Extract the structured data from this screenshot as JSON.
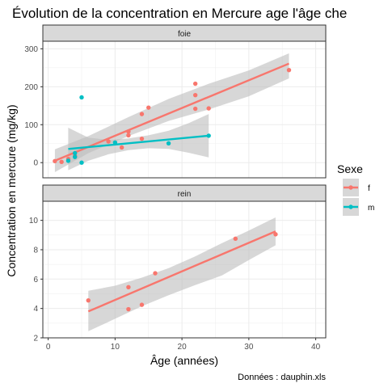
{
  "chart_data": {
    "type": "scatter",
    "title": "Évolution de la concentration en Mercure age l'âge che",
    "xlabel": "Âge (années)",
    "ylabel": "Concentration en mercure (mg/kg)",
    "caption": "Données : dauphin.xls",
    "legend": {
      "title": "Sexe",
      "position": "right",
      "entries": [
        "f",
        "m"
      ]
    },
    "colors": {
      "f": "#F8766D",
      "m": "#00BFC4",
      "ribbon": "#BDBDBD",
      "strip": "#D9D9D9"
    },
    "xlim": [
      -0.8,
      41.5
    ],
    "x_ticks": [
      0,
      10,
      20,
      30,
      40
    ],
    "panels": [
      {
        "label": "foie",
        "ylim": [
          -40,
          320
        ],
        "y_ticks": [
          0,
          100,
          200,
          300
        ],
        "series": [
          {
            "name": "f",
            "points": [
              [
                1,
                4
              ],
              [
                2,
                2
              ],
              [
                3,
                10
              ],
              [
                4,
                18
              ],
              [
                9,
                56
              ],
              [
                11,
                40
              ],
              [
                12,
                72
              ],
              [
                12,
                82
              ],
              [
                14,
                63
              ],
              [
                14,
                128
              ],
              [
                15,
                145
              ],
              [
                22,
                142
              ],
              [
                22,
                178
              ],
              [
                22,
                208
              ],
              [
                24,
                143
              ],
              [
                36,
                244
              ]
            ],
            "fit": {
              "x": [
                1,
                36
              ],
              "y": [
                5,
                261
              ]
            },
            "band": {
              "x": [
                1,
                6,
                12,
                18,
                24,
                30,
                36
              ],
              "upper": [
                35,
                70,
                120,
                168,
                208,
                243,
                288
              ],
              "lower": [
                -25,
                25,
                70,
                110,
                140,
                175,
                222
              ]
            }
          },
          {
            "name": "m",
            "points": [
              [
                3,
                5
              ],
              [
                4,
                15
              ],
              [
                4,
                25
              ],
              [
                5,
                0
              ],
              [
                5,
                172
              ],
              [
                10,
                53
              ],
              [
                18,
                51
              ],
              [
                24,
                71
              ]
            ],
            "fit": {
              "x": [
                3,
                24
              ],
              "y": [
                36,
                71
              ]
            },
            "band": {
              "x": [
                3,
                6,
                9,
                12,
                15,
                18,
                21,
                24
              ],
              "upper": [
                92,
                66,
                60,
                64,
                72,
                84,
                104,
                128
              ],
              "lower": [
                -20,
                5,
                22,
                33,
                38,
                36,
                26,
                14
              ]
            }
          }
        ]
      },
      {
        "label": "rein",
        "ylim": [
          2,
          11.3
        ],
        "y_ticks": [
          2,
          4,
          6,
          8,
          10
        ],
        "series": [
          {
            "name": "f",
            "points": [
              [
                6,
                4.55
              ],
              [
                12,
                3.95
              ],
              [
                12,
                5.45
              ],
              [
                14,
                4.25
              ],
              [
                16,
                6.4
              ],
              [
                28,
                8.75
              ],
              [
                34,
                9.05
              ]
            ],
            "fit": {
              "x": [
                6,
                34
              ],
              "y": [
                3.8,
                9.25
              ]
            },
            "band": {
              "x": [
                6,
                10,
                14,
                18,
                22,
                26,
                30,
                34
              ],
              "upper": [
                5.2,
                5.55,
                6.1,
                6.75,
                7.55,
                8.45,
                9.3,
                10.2
              ],
              "lower": [
                2.45,
                3.3,
                4.15,
                4.9,
                5.6,
                6.25,
                7.3,
                8.3
              ]
            }
          }
        ]
      }
    ]
  }
}
